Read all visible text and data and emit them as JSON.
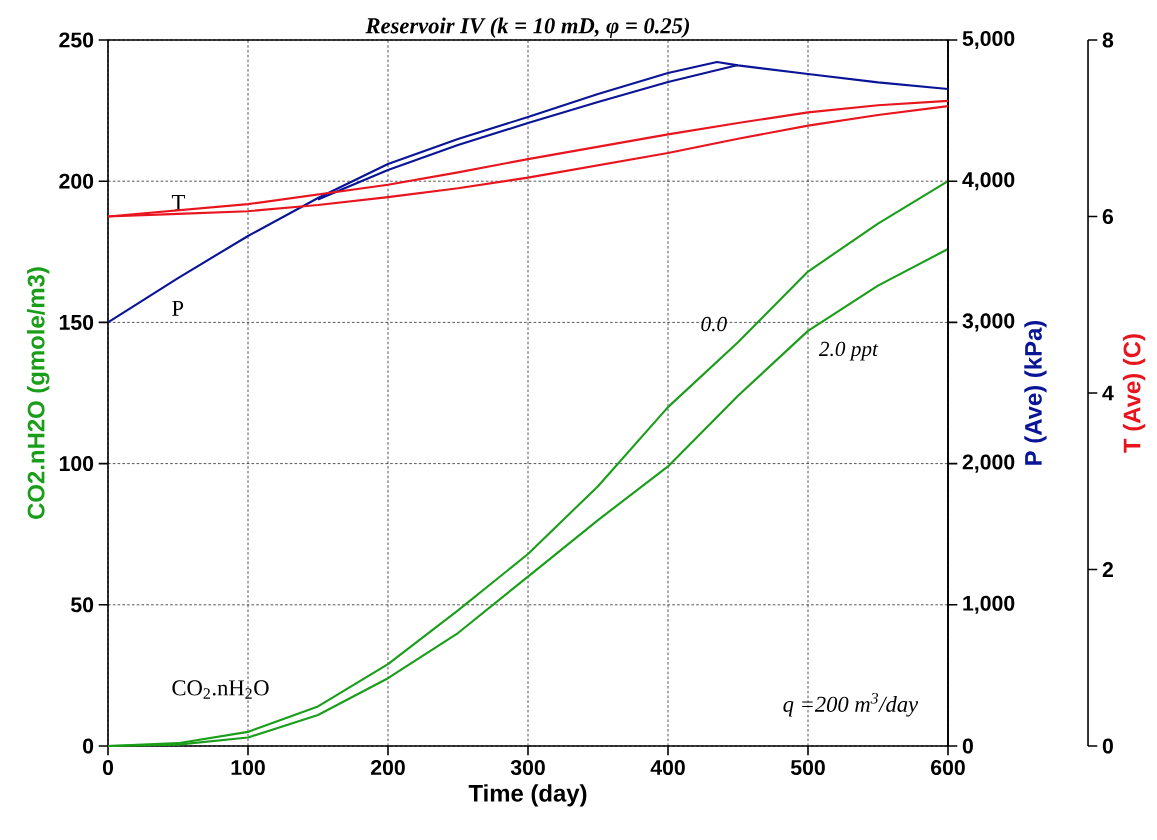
{
  "chart_data": {
    "type": "line",
    "title": "Reservoir IV (k = 10 mD, φ = 0.25)",
    "xlabel": "Time (day)",
    "ylabel": "CO2.nH2O (gmole/m3)",
    "y2label": "P (Ave) (kPa)",
    "y3label": "T (Ave) (C)",
    "x": [
      0,
      50,
      100,
      150,
      200,
      250,
      300,
      350,
      400,
      450,
      500,
      550,
      600
    ],
    "series": [
      {
        "name": "0.0",
        "color": "#1a9e1a",
        "values": [
          0,
          1,
          5,
          14,
          29,
          48,
          68,
          92,
          120,
          143,
          168,
          185,
          200
        ]
      },
      {
        "name": "2.0 ppt",
        "color": "#1a9e1a",
        "values": [
          0,
          0.5,
          3,
          11,
          24,
          40,
          60,
          80,
          99,
          124,
          147,
          163,
          176
        ]
      },
      {
        "color": "#0a1496",
        "axis": "y2",
        "x": [
          0,
          50,
          100,
          150,
          200,
          250,
          300,
          350,
          400,
          435,
          450,
          500,
          550,
          600
        ],
        "values": [
          3000,
          3314,
          3612,
          3881,
          4122,
          4299,
          4455,
          4618,
          4766,
          4844,
          4820,
          4759,
          4700,
          4653
        ]
      },
      {
        "color": "#0a1496",
        "axis": "y2",
        "x": [
          150,
          200,
          250,
          300,
          350,
          400,
          450
        ],
        "values": [
          3870,
          4080,
          4256,
          4412,
          4561,
          4703,
          4823
        ]
      },
      {
        "color": "#e8141e",
        "axis": "y3",
        "values": [
          6.0,
          6.07,
          6.14,
          6.25,
          6.36,
          6.5,
          6.65,
          6.79,
          6.93,
          7.06,
          7.18,
          7.26,
          7.31
        ]
      },
      {
        "color": "#e8141e",
        "axis": "y3",
        "values": [
          6.0,
          6.03,
          6.06,
          6.13,
          6.22,
          6.32,
          6.44,
          6.58,
          6.72,
          6.88,
          7.03,
          7.15,
          7.25
        ]
      }
    ],
    "xlim": [
      0,
      600
    ],
    "xticks": [
      0,
      100,
      200,
      300,
      400,
      500,
      600
    ],
    "ylim": [
      0,
      250
    ],
    "yticks": [
      0,
      50,
      100,
      150,
      200,
      250
    ],
    "y2lim": [
      0,
      5000
    ],
    "y2ticks": [
      0,
      {
        "value": 1000,
        "label": "1,000"
      },
      {
        "value": 2000,
        "label": "2,000"
      },
      {
        "value": 3000,
        "label": "3,000"
      },
      {
        "value": 4000,
        "label": "4,000"
      },
      {
        "value": 5000,
        "label": "5,000"
      }
    ],
    "y3lim": [
      0,
      8
    ],
    "y3ticks": [
      0,
      2,
      4,
      6,
      8
    ],
    "annotations": [
      "T",
      "P",
      "CO$_{2}$.nH$_{2}$O",
      "q =200 m$^{3}$/day"
    ],
    "grid": true,
    "marker": "none",
    "line_style": "solid"
  }
}
